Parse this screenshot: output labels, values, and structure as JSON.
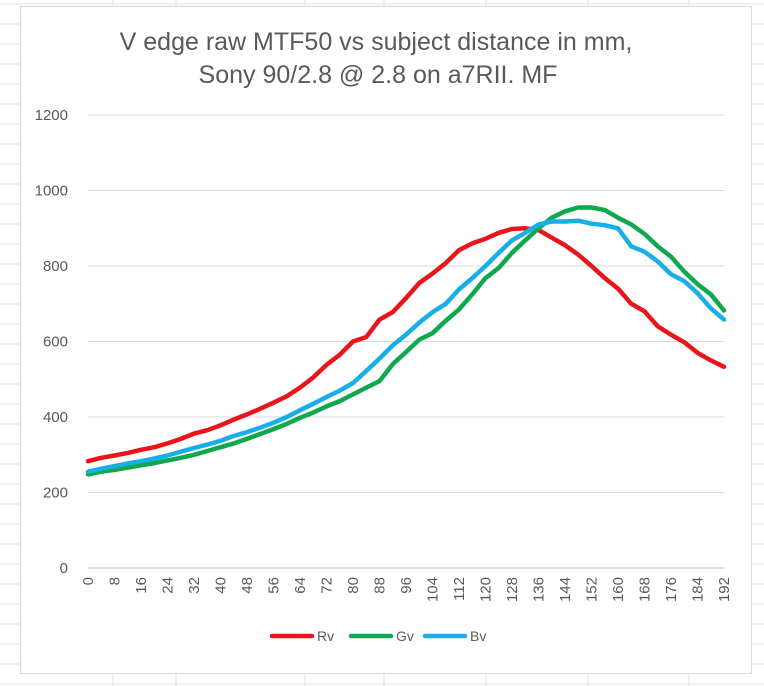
{
  "chart_data": {
    "type": "line",
    "title_lines": [
      "V edge raw MTF50 vs subject distance in mm,",
      "Sony 90/2.8 @ 2.8 on a7RII. MF"
    ],
    "xlabel": "",
    "ylabel": "",
    "ylim": [
      0,
      1200
    ],
    "y_ticks": [
      0,
      200,
      400,
      600,
      800,
      1000,
      1200
    ],
    "x_tick_labels": [
      "0",
      "8",
      "16",
      "24",
      "32",
      "40",
      "48",
      "56",
      "64",
      "72",
      "80",
      "88",
      "96",
      "104",
      "112",
      "120",
      "128",
      "136",
      "144",
      "152",
      "160",
      "168",
      "176",
      "184",
      "192"
    ],
    "x": [
      0,
      4,
      8,
      12,
      16,
      20,
      24,
      28,
      32,
      36,
      40,
      44,
      48,
      52,
      56,
      60,
      64,
      68,
      72,
      76,
      80,
      84,
      88,
      92,
      96,
      100,
      104,
      108,
      112,
      116,
      120,
      124,
      128,
      132,
      136,
      140,
      144,
      148,
      152,
      156,
      160,
      164,
      168,
      172,
      176,
      180,
      184,
      188,
      192
    ],
    "grid": "horizontal",
    "legend_position": "bottom",
    "series": [
      {
        "name": "Rv",
        "color": "#e8151b",
        "values": [
          283,
          292,
          298,
          305,
          313,
          320,
          330,
          342,
          356,
          365,
          378,
          393,
          407,
          422,
          438,
          455,
          478,
          505,
          538,
          565,
          600,
          612,
          658,
          678,
          715,
          755,
          780,
          808,
          842,
          860,
          872,
          888,
          898,
          900,
          895,
          875,
          855,
          830,
          800,
          768,
          740,
          700,
          680,
          640,
          618,
          598,
          570,
          550,
          533
        ]
      },
      {
        "name": "Gv",
        "color": "#0fa84d",
        "values": [
          248,
          255,
          260,
          266,
          272,
          278,
          285,
          292,
          300,
          310,
          320,
          330,
          342,
          355,
          368,
          382,
          398,
          412,
          428,
          442,
          460,
          478,
          495,
          540,
          572,
          605,
          622,
          655,
          685,
          725,
          768,
          795,
          835,
          868,
          900,
          928,
          945,
          955,
          955,
          948,
          928,
          910,
          885,
          852,
          825,
          785,
          752,
          725,
          682
        ]
      },
      {
        "name": "Bv",
        "color": "#18aee8",
        "values": [
          255,
          263,
          270,
          277,
          283,
          290,
          298,
          308,
          318,
          327,
          337,
          350,
          360,
          372,
          385,
          400,
          418,
          435,
          453,
          470,
          490,
          522,
          555,
          590,
          618,
          650,
          678,
          700,
          738,
          768,
          800,
          835,
          868,
          888,
          910,
          918,
          918,
          920,
          912,
          908,
          900,
          852,
          838,
          812,
          778,
          760,
          728,
          688,
          658
        ]
      }
    ]
  }
}
